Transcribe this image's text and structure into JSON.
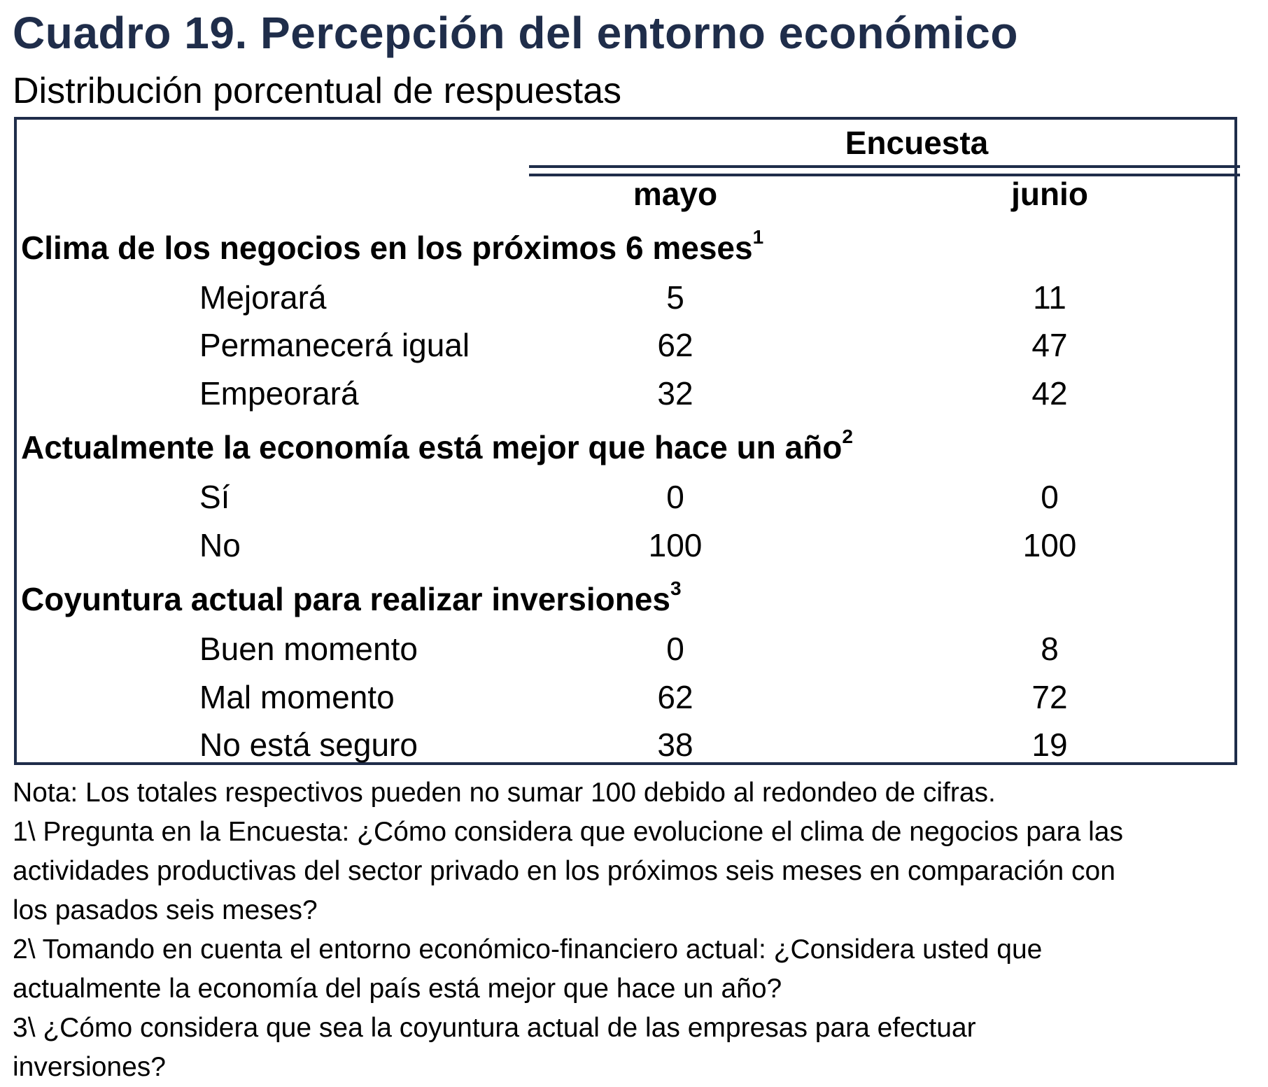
{
  "title": "Cuadro 19. Percepción del entorno económico",
  "subtitle": "Distribución porcentual de respuestas",
  "table": {
    "group_header": "Encuesta",
    "columns": [
      "mayo",
      "junio"
    ],
    "sections": [
      {
        "title": "Clima de los negocios en los próximos 6 meses",
        "footnote": "1",
        "rows": [
          {
            "label": "Mejorará",
            "mayo": "5",
            "junio": "11"
          },
          {
            "label": "Permanecerá igual",
            "mayo": "62",
            "junio": "47"
          },
          {
            "label": "Empeorará",
            "mayo": "32",
            "junio": "42"
          }
        ]
      },
      {
        "title": "Actualmente la economía está mejor que hace un año",
        "footnote": "2",
        "rows": [
          {
            "label": "Sí",
            "mayo": "0",
            "junio": "0"
          },
          {
            "label": "No",
            "mayo": "100",
            "junio": "100"
          }
        ]
      },
      {
        "title": "Coyuntura actual para realizar inversiones",
        "footnote": "3",
        "rows": [
          {
            "label": "Buen momento",
            "mayo": "0",
            "junio": "8"
          },
          {
            "label": "Mal momento",
            "mayo": "62",
            "junio": "72"
          },
          {
            "label": "No está seguro",
            "mayo": "38",
            "junio": "19"
          }
        ]
      }
    ]
  },
  "notes": {
    "nota": "Nota: Los totales respectivos pueden no sumar 100 debido al redondeo de cifras.",
    "n1_line1": "1\\ Pregunta en la Encuesta: ¿Cómo considera que evolucione el clima de negocios para las",
    "n1_line2": "actividades productivas del sector privado en los próximos seis meses en comparación con",
    "n1_line3": "los pasados seis meses?",
    "n2_line1": "2\\ Tomando en cuenta el entorno económico-financiero actual: ¿Considera usted que",
    "n2_line2": "actualmente la economía del país está mejor que hace un año?",
    "n3_line1": "3\\ ¿Cómo considera que sea la coyuntura actual de las empresas para efectuar",
    "n3_line2": "inversiones?"
  },
  "colors": {
    "title": "#1f2d4a",
    "border": "#1f2d4a",
    "text": "#000000"
  }
}
